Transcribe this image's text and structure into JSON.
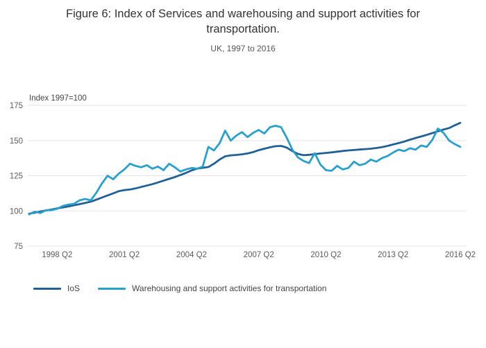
{
  "figure": {
    "title": "Figure 6: Index of Services and warehousing and support activities for transportation.",
    "subtitle": "UK, 1997 to 2016"
  },
  "chart_data": {
    "type": "line",
    "title": "Figure 6: Index of Services and warehousing and support activities for transportation.",
    "subtitle": "UK, 1997 to 2016",
    "y_axis_label": "Index 1997=100",
    "ylim": [
      75,
      175
    ],
    "y_ticks": [
      75,
      100,
      125,
      150,
      175
    ],
    "grid": "horizontal",
    "legend_position": "bottom",
    "x_tick_labels": [
      "1998 Q2",
      "2001 Q2",
      "2004 Q2",
      "2007 Q2",
      "2010 Q2",
      "2013 Q2",
      "2016 Q2"
    ],
    "x": [
      "1997 Q1",
      "1997 Q2",
      "1997 Q3",
      "1997 Q4",
      "1998 Q1",
      "1998 Q2",
      "1998 Q3",
      "1998 Q4",
      "1999 Q1",
      "1999 Q2",
      "1999 Q3",
      "1999 Q4",
      "2000 Q1",
      "2000 Q2",
      "2000 Q3",
      "2000 Q4",
      "2001 Q1",
      "2001 Q2",
      "2001 Q3",
      "2001 Q4",
      "2002 Q1",
      "2002 Q2",
      "2002 Q3",
      "2002 Q4",
      "2003 Q1",
      "2003 Q2",
      "2003 Q3",
      "2003 Q4",
      "2004 Q1",
      "2004 Q2",
      "2004 Q3",
      "2004 Q4",
      "2005 Q1",
      "2005 Q2",
      "2005 Q3",
      "2005 Q4",
      "2006 Q1",
      "2006 Q2",
      "2006 Q3",
      "2006 Q4",
      "2007 Q1",
      "2007 Q2",
      "2007 Q3",
      "2007 Q4",
      "2008 Q1",
      "2008 Q2",
      "2008 Q3",
      "2008 Q4",
      "2009 Q1",
      "2009 Q2",
      "2009 Q3",
      "2009 Q4",
      "2010 Q1",
      "2010 Q2",
      "2010 Q3",
      "2010 Q4",
      "2011 Q1",
      "2011 Q2",
      "2011 Q3",
      "2011 Q4",
      "2012 Q1",
      "2012 Q2",
      "2012 Q3",
      "2012 Q4",
      "2013 Q1",
      "2013 Q2",
      "2013 Q3",
      "2013 Q4",
      "2014 Q1",
      "2014 Q2",
      "2014 Q3",
      "2014 Q4",
      "2015 Q1",
      "2015 Q2",
      "2015 Q3",
      "2015 Q4",
      "2016 Q1",
      "2016 Q2"
    ],
    "series": [
      {
        "name": "IoS",
        "color": "#206095",
        "values": [
          98.0,
          98.8,
          99.6,
          100.3,
          101.0,
          101.8,
          102.5,
          103.2,
          104.0,
          104.8,
          105.7,
          106.6,
          108.0,
          109.5,
          111.0,
          112.5,
          114.0,
          114.8,
          115.2,
          116.0,
          117.0,
          118.0,
          119.0,
          120.2,
          121.5,
          122.8,
          124.0,
          125.5,
          127.0,
          128.8,
          130.0,
          130.6,
          131.2,
          133.5,
          136.5,
          138.8,
          139.5,
          139.8,
          140.2,
          140.8,
          141.8,
          143.2,
          144.2,
          145.2,
          146.0,
          146.2,
          145.0,
          142.5,
          140.5,
          139.6,
          139.9,
          140.3,
          140.8,
          141.2,
          141.6,
          142.1,
          142.6,
          143.0,
          143.3,
          143.6,
          143.9,
          144.2,
          144.7,
          145.3,
          146.2,
          147.2,
          148.2,
          149.3,
          150.6,
          151.8,
          152.9,
          154.0,
          155.3,
          156.6,
          157.8,
          158.9,
          160.8,
          162.6
        ]
      },
      {
        "name": "Warehousing and support activities for transportation",
        "color": "#27A0CC",
        "values": [
          97.5,
          99.5,
          98.5,
          100.5,
          100.5,
          101.5,
          103.5,
          104.5,
          105.0,
          107.5,
          108.5,
          107.5,
          113.0,
          119.5,
          125.0,
          122.5,
          126.5,
          129.5,
          133.5,
          132.0,
          131.0,
          132.5,
          130.0,
          131.5,
          129.0,
          133.5,
          131.0,
          128.0,
          129.5,
          130.5,
          130.0,
          131.5,
          145.5,
          143.0,
          148.0,
          157.0,
          150.0,
          153.5,
          156.0,
          152.5,
          155.5,
          157.5,
          155.0,
          159.5,
          160.5,
          159.5,
          152.0,
          143.5,
          138.0,
          135.5,
          134.0,
          141.0,
          133.0,
          129.0,
          128.5,
          132.0,
          129.5,
          130.5,
          135.0,
          132.5,
          133.5,
          136.5,
          135.0,
          137.5,
          139.0,
          141.5,
          143.5,
          142.5,
          144.5,
          143.5,
          146.5,
          145.5,
          150.5,
          158.5,
          155.5,
          150.0,
          147.5,
          145.5
        ]
      }
    ]
  },
  "style": {
    "grid_color": "#e5e5e5",
    "tick_color": "#5b5b5b",
    "annotation_color": "#444444"
  }
}
